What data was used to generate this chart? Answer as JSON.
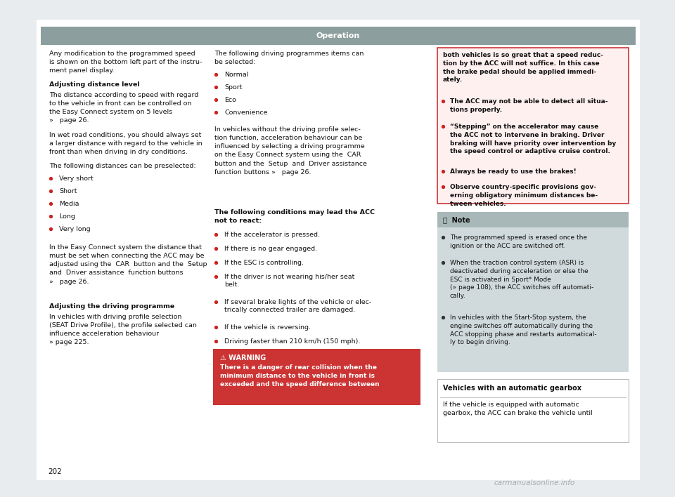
{
  "page_bg": "#e8ecee",
  "content_bg": "#ffffff",
  "header_bg": "#8c9e9e",
  "header_text": "Operation",
  "header_text_color": "#ffffff",
  "warning_bg": "#cc3333",
  "warning_text_color": "#ffffff",
  "note_header_bg": "#a8b8b8",
  "note_body_bg": "#d0dadc",
  "red_border_bg": "#fff0f0",
  "red_border_color": "#cc3333",
  "bullet_red": "#cc2222",
  "bullet_black": "#333333",
  "text_color": "#111111",
  "page_number": "202",
  "watermark": "carmanualsonline.info"
}
